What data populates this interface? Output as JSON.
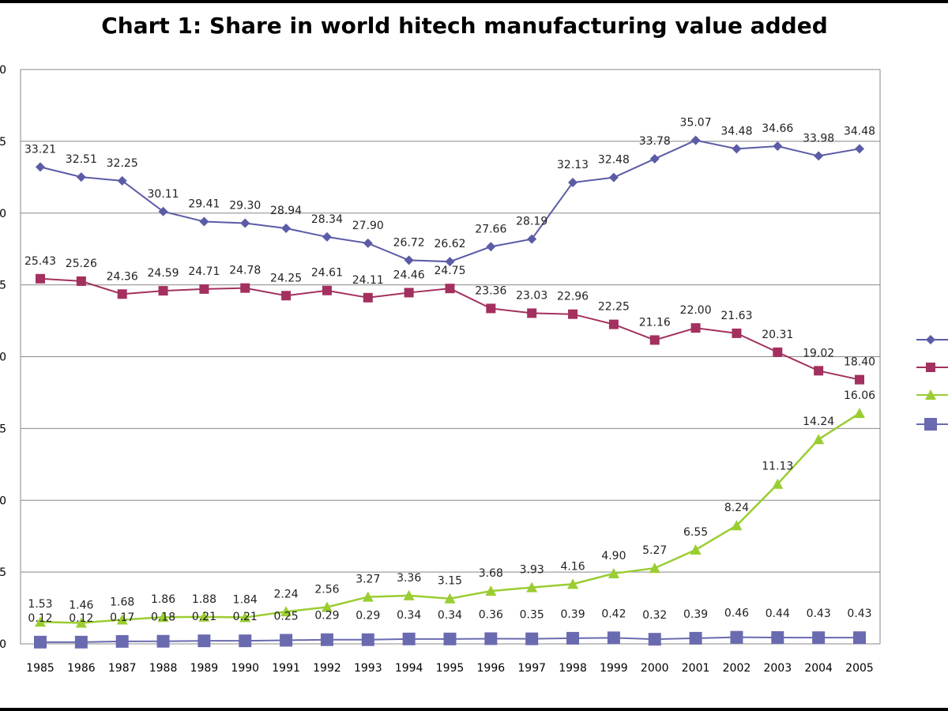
{
  "chart_data": {
    "type": "line",
    "title": "Chart 1: Share in world hitech manufacturing value added",
    "xlabel": "",
    "ylabel": "",
    "x": [
      "1985",
      "1986",
      "1987",
      "1988",
      "1989",
      "1990",
      "1991",
      "1992",
      "1993",
      "1994",
      "1995",
      "1996",
      "1997",
      "1998",
      "1999",
      "2000",
      "2001",
      "2002",
      "2003",
      "2004",
      "2005"
    ],
    "ylim": [
      0,
      40
    ],
    "grid": true,
    "legend_position": "right",
    "series": [
      {
        "color": "#5b5ba6",
        "marker": "diamond",
        "values": [
          33.21,
          32.51,
          32.25,
          30.11,
          29.41,
          29.3,
          28.94,
          28.34,
          27.9,
          26.72,
          26.62,
          27.66,
          28.19,
          32.13,
          32.48,
          33.78,
          35.07,
          34.48,
          34.66,
          33.98,
          34.48
        ]
      },
      {
        "color": "#a3305e",
        "marker": "square",
        "values": [
          25.43,
          25.26,
          24.36,
          24.59,
          24.71,
          24.78,
          24.25,
          24.61,
          24.11,
          24.46,
          24.75,
          23.36,
          23.03,
          22.96,
          22.25,
          21.16,
          22.0,
          21.63,
          20.31,
          19.02,
          18.4
        ]
      },
      {
        "color": "#9acd32",
        "marker": "triangle",
        "values": [
          1.53,
          1.46,
          1.68,
          1.86,
          1.88,
          1.84,
          2.24,
          2.56,
          3.27,
          3.36,
          3.15,
          3.68,
          3.93,
          4.16,
          4.9,
          5.27,
          6.55,
          8.24,
          11.13,
          14.24,
          16.06
        ]
      },
      {
        "color": "#6a6ab0",
        "marker": "big-square",
        "values": [
          0.12,
          0.12,
          0.17,
          0.18,
          0.21,
          0.21,
          0.25,
          0.29,
          0.29,
          0.34,
          0.34,
          0.36,
          0.35,
          0.39,
          0.42,
          0.32,
          0.39,
          0.46,
          0.44,
          0.43,
          0.43
        ]
      }
    ]
  }
}
